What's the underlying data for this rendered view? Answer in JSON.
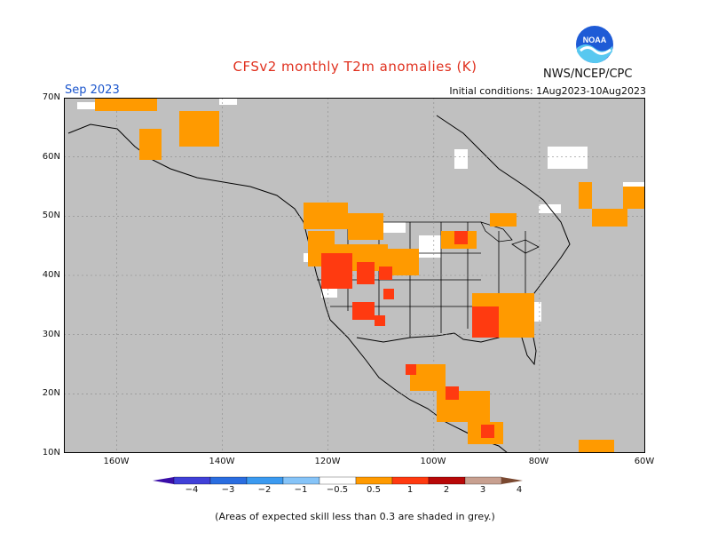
{
  "header": {
    "title": "CFSv2 monthly T2m anomalies (K)",
    "valid_month": "Sep 2023",
    "initial_conditions": "Initial conditions: 1Aug2023-10Aug2023",
    "agency": "NWS/NCEP/CPC",
    "logo_text": "NOAA"
  },
  "axes": {
    "lat_labels": [
      "70N",
      "60N",
      "50N",
      "40N",
      "30N",
      "20N",
      "10N"
    ],
    "lat_values": [
      70,
      60,
      50,
      40,
      30,
      20,
      10
    ],
    "lon_labels": [
      "160W",
      "140W",
      "120W",
      "100W",
      "80W",
      "60W"
    ],
    "lon_values": [
      -160,
      -140,
      -120,
      -100,
      -80,
      -60
    ],
    "lon_range": [
      -170,
      -60
    ],
    "lat_range": [
      10,
      70
    ]
  },
  "colorbar": {
    "labels": [
      "−4",
      "−3",
      "−2",
      "−1",
      "−0.5",
      "0.5",
      "1",
      "2",
      "3",
      "4"
    ],
    "colors": [
      "#3a0ea8",
      "#4040d8",
      "#2a6de0",
      "#3b9af0",
      "#86c4f8",
      "#ffffff",
      "#ff9a00",
      "#ff3a10",
      "#b80808",
      "#c8a090",
      "#7a4830"
    ]
  },
  "colors": {
    "skill_grey": "#c0c0c0",
    "low_skill_white": "#ffffff",
    "anom_0_5_1": "#ff9a00",
    "anom_1_2": "#ff3a10"
  },
  "footnote": "(Areas of expected skill less than 0.3 are shaded in grey.)"
}
